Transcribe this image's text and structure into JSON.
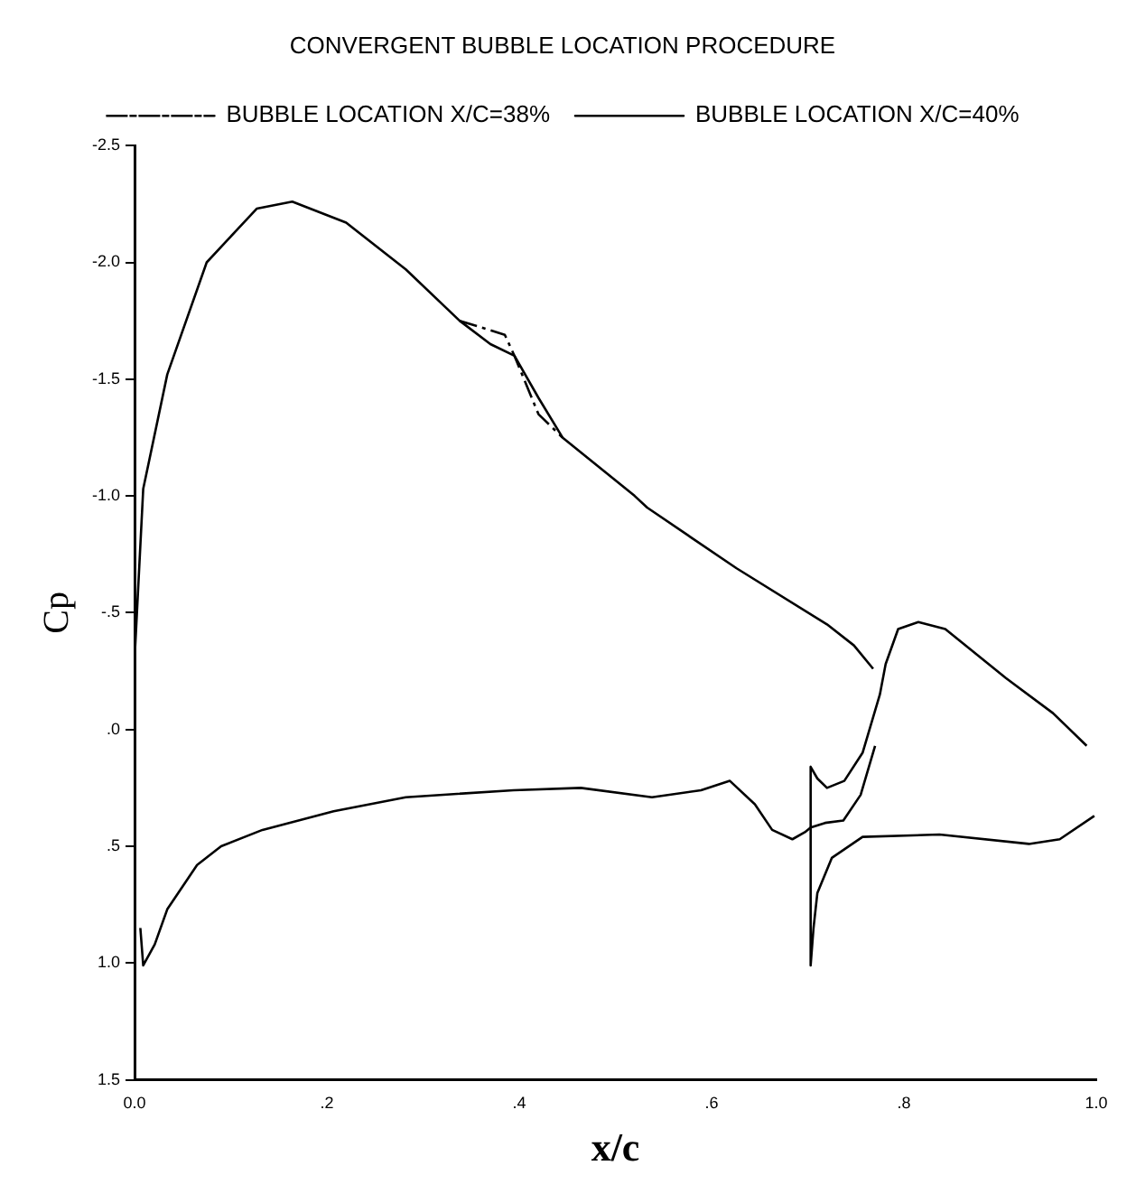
{
  "chart_data": {
    "type": "line",
    "title": "CONVERGENT BUBBLE LOCATION PROCEDURE",
    "xlabel": "x/c",
    "ylabel": "Cp",
    "legend": "top",
    "marker": "none",
    "grid": false,
    "xlim": [
      0,
      1
    ],
    "xticks": [
      {
        "value": 0,
        "label": "0.0"
      },
      {
        "value": 0.2,
        "label": ".2"
      },
      {
        "value": 0.4,
        "label": ".4"
      },
      {
        "value": 0.6,
        "label": ".6"
      },
      {
        "value": 0.8,
        "label": ".8"
      },
      {
        "value": 1,
        "label": "1.0"
      }
    ],
    "ylim": [
      1.5,
      -2.5
    ],
    "yticks": [
      {
        "value": -2.5,
        "label": "-2.5"
      },
      {
        "value": -2,
        "label": "-2.0"
      },
      {
        "value": -1.5,
        "label": "-1.5"
      },
      {
        "value": -1,
        "label": "-1.0"
      },
      {
        "value": -0.5,
        "label": "-.5"
      },
      {
        "value": 0,
        "label": ".0"
      },
      {
        "value": 0.5,
        "label": ".5"
      },
      {
        "value": 1,
        "label": "1.0"
      },
      {
        "value": 1.5,
        "label": "1.5"
      }
    ],
    "series": [
      {
        "name": "BUBBLE LOCATION X/C=38%",
        "color": "#000000",
        "line_style": "dashed",
        "x": [
          0.338,
          0.385,
          0.395,
          0.42,
          0.445
        ],
        "values": [
          -1.75,
          -1.69,
          -1.6,
          -1.35,
          -1.25
        ]
      },
      {
        "name": "BUBBLE LOCATION X/C=40%",
        "color": "#000000",
        "line_style": "solid",
        "x": [
          0,
          0,
          0.009,
          0.034,
          0.075,
          0.127,
          0.164,
          0.22,
          0.282,
          0.338,
          0.37,
          0.395,
          0.42,
          0.445,
          0.52,
          0.533,
          0.626,
          0.72,
          0.748,
          0.768
        ],
        "values": [
          0.55,
          -0.3,
          -1.03,
          -1.52,
          -2.0,
          -2.23,
          -2.26,
          -2.17,
          -1.97,
          -1.75,
          -1.65,
          -1.6,
          -1.42,
          -1.25,
          -1.0,
          -0.95,
          -0.69,
          -0.45,
          -0.36,
          -0.26
        ]
      },
      {
        "color": "#000000",
        "line_style": "solid",
        "x": [
          0.006,
          0.009,
          0.021,
          0.034,
          0.065,
          0.09,
          0.133,
          0.207,
          0.282,
          0.394,
          0.464,
          0.538,
          0.589,
          0.619,
          0.645,
          0.663,
          0.684,
          0.697,
          0.703,
          0.718,
          0.737,
          0.755,
          0.77
        ],
        "values": [
          0.85,
          1.01,
          0.92,
          0.77,
          0.58,
          0.5,
          0.43,
          0.35,
          0.29,
          0.26,
          0.25,
          0.29,
          0.26,
          0.22,
          0.32,
          0.43,
          0.47,
          0.44,
          0.42,
          0.4,
          0.39,
          0.28,
          0.07
        ]
      },
      {
        "color": "#000000",
        "line_style": "solid",
        "x": [
          0.99,
          0.955,
          0.906,
          0.843,
          0.815,
          0.794,
          0.781,
          0.775,
          0.757,
          0.738,
          0.72,
          0.71,
          0.703,
          0.703,
          0.706,
          0.71,
          0.725,
          0.757,
          0.837,
          0.93,
          0.962,
          0.998
        ],
        "values": [
          0.07,
          -0.07,
          -0.22,
          -0.43,
          -0.46,
          -0.43,
          -0.28,
          -0.15,
          0.1,
          0.22,
          0.25,
          0.21,
          0.16,
          1.01,
          0.85,
          0.7,
          0.55,
          0.46,
          0.45,
          0.49,
          0.47,
          0.37
        ]
      }
    ]
  }
}
